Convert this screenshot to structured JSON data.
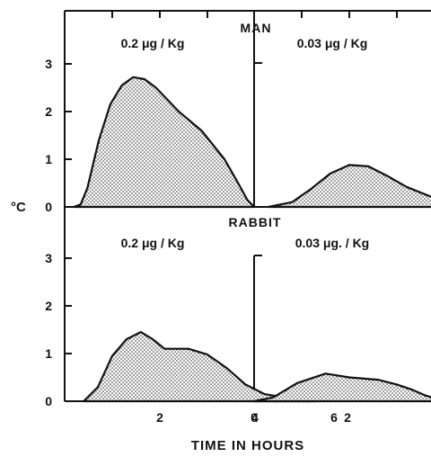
{
  "chart_data": {
    "type": "area",
    "ylabel": "°C",
    "xlabel": "TIME IN HOURS",
    "ylim": [
      0,
      3.3
    ],
    "xlim": [
      0,
      9
    ],
    "yticks": [
      "0",
      "1",
      "2",
      "3"
    ],
    "xticks": [
      "2",
      "4",
      "6",
      "0",
      "2",
      "4",
      "6"
    ],
    "rows": [
      "MAN",
      "RABBIT"
    ],
    "panels": [
      {
        "row": "MAN",
        "title": "0.2 μg / Kg",
        "x": [
          0.4,
          0.7,
          1.0,
          1.5,
          2.0,
          2.5,
          3.0,
          3.5,
          4.0,
          5.0,
          6.0,
          7.0,
          7.6,
          8.0,
          8.3
        ],
        "y": [
          0.0,
          0.05,
          0.4,
          1.4,
          2.15,
          2.55,
          2.72,
          2.68,
          2.5,
          2.0,
          1.6,
          1.0,
          0.5,
          0.15,
          0.0
        ]
      },
      {
        "row": "MAN",
        "title": "0.03 μg / Kg",
        "x": [
          0.3,
          0.8,
          1.2,
          1.6,
          2.0,
          2.4,
          2.8,
          3.2,
          3.8,
          4.4,
          5.0
        ],
        "y": [
          0.0,
          0.1,
          0.38,
          0.7,
          0.88,
          0.85,
          0.65,
          0.42,
          0.18,
          0.05,
          0.0
        ]
      },
      {
        "row": "RABBIT",
        "title": "0.2 μg / Kg",
        "x": [
          0.4,
          0.7,
          1.0,
          1.3,
          1.6,
          1.85,
          2.1,
          2.6,
          3.0,
          3.4,
          3.8,
          4.2,
          4.8,
          5.3
        ],
        "y": [
          0.0,
          0.3,
          0.95,
          1.3,
          1.45,
          1.3,
          1.1,
          1.1,
          0.98,
          0.7,
          0.35,
          0.15,
          0.05,
          0.0
        ]
      },
      {
        "row": "RABBIT",
        "title": "0.03 μg. / Kg",
        "x": [
          0.0,
          0.4,
          0.9,
          1.5,
          2.0,
          2.6,
          3.0,
          3.3,
          3.6,
          4.0
        ],
        "y": [
          0.0,
          0.08,
          0.38,
          0.58,
          0.5,
          0.45,
          0.35,
          0.25,
          0.12,
          0.0
        ]
      }
    ]
  },
  "labels": {
    "man": "MAN",
    "rabbit": "RABBIT",
    "ylabel": "°C",
    "xlabel": "TIME IN HOURS",
    "p1": "0.2 μg / Kg",
    "p2": "0.03 μg / Kg",
    "p3": "0.2 μg / Kg",
    "p4": "0.03 μg. / Kg"
  }
}
